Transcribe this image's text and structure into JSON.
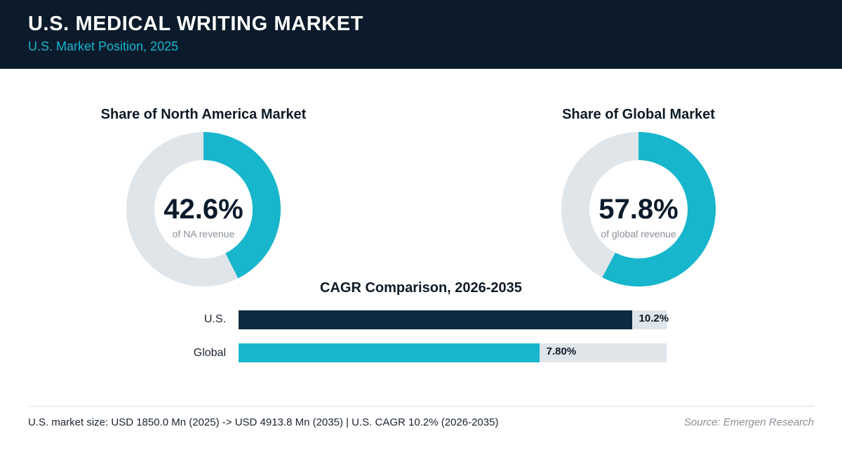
{
  "header": {
    "title": "U.S. MEDICAL WRITING MARKET",
    "subtitle": "U.S. Market Position, 2025"
  },
  "colors": {
    "header_bg": "#0b1b2b",
    "accent": "#17b6cc",
    "navy": "#0e2a42",
    "track": "#e0e5ea"
  },
  "chart_data": [
    {
      "type": "pie",
      "title": "Share of North America Market",
      "value_label": "42.6%",
      "sub_label": "of NA revenue",
      "values": [
        42.6,
        57.4
      ]
    },
    {
      "type": "pie",
      "title": "Share of Global Market",
      "value_label": "57.8%",
      "sub_label": "of global revenue",
      "values": [
        57.8,
        42.2
      ]
    },
    {
      "type": "bar",
      "title": "CAGR Comparison, 2026-2035",
      "categories": [
        "U.S.",
        "Global"
      ],
      "values": [
        10.2,
        7.8
      ],
      "value_labels": [
        "10.2%",
        "7.80%"
      ],
      "xlim": [
        0,
        11.1
      ]
    }
  ],
  "footer": {
    "summary": "U.S. market size: USD 1850.0 Mn (2025) -> USD 4913.8 Mn (2035)  |  U.S. CAGR 10.2% (2026-2035)",
    "source": "Source: Emergen Research"
  }
}
